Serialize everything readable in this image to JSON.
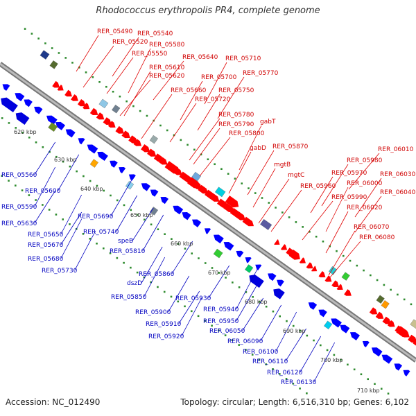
{
  "title": "Rhodococcus erythropolis PR4, complete genome",
  "footer": {
    "accession": "Accession: NC_012490",
    "topology": "Topology: circular; Length: 6,516,310 bp; Genes: 6,102"
  },
  "kbp_ticks": [
    "620 kbp",
    "630 kbp",
    "640 kbp",
    "650 kbp",
    "660 kbp",
    "670 kbp",
    "680 kbp",
    "690 kbp",
    "700 kbp",
    "710 kbp"
  ],
  "forward_labels": [
    "RER_05490",
    "RER_05540",
    "RER_05520",
    "RER_05580",
    "RER_05550",
    "RER_05640",
    "RER_05710",
    "RER_05610",
    "RER_05620",
    "RER_05700",
    "RER_05770",
    "RER_05660",
    "RER_05750",
    "RER_05720",
    "RER_05780",
    "gabT",
    "RER_05790",
    "RER_05800",
    "gabD",
    "RER_05870",
    "RER_06010",
    "mgtB",
    "RER_05980",
    "mgtC",
    "RER_05970",
    "RER_06030",
    "RER_05960",
    "RER_06000",
    "RER_06040",
    "RER_05990",
    "RER_06020",
    "RER_06070",
    "RER_06080"
  ],
  "reverse_labels": [
    "RER_05560",
    "RER_05600",
    "RER_05590",
    "RER_05630",
    "RER_05690",
    "RER_05650",
    "RER_05670",
    "RER_05740",
    "RER_05680",
    "speB",
    "RER_05810",
    "RER_05730",
    "RER_05860",
    "dszD",
    "RER_05850",
    "RER_05930",
    "RER_05900",
    "RER_05940",
    "RER_05910",
    "RER_05950",
    "RER_05920",
    "RER_06050",
    "RER_06090",
    "RER_06100",
    "RER_06110",
    "RER_06120",
    "RER_06130"
  ],
  "colors": {
    "forward_cds": "#ff0000",
    "reverse_cds": "#0000ff",
    "backbone": "#999999",
    "tick_dots": "#2e8b2e"
  }
}
